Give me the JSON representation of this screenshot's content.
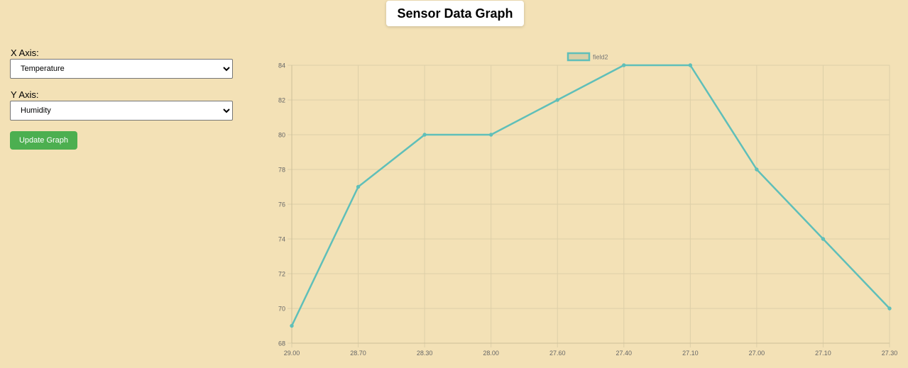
{
  "header": {
    "title": "Sensor Data Graph"
  },
  "controls": {
    "x_axis_label": "X Axis:",
    "x_axis_selected": "Temperature",
    "y_axis_label": "Y Axis:",
    "y_axis_selected": "Humidity",
    "update_button_label": "Update Graph"
  },
  "colors": {
    "line": "#5fbfb9",
    "legend_fill": "#d9cfa6",
    "grid": "#ddcfa8",
    "button": "#4caf50"
  },
  "chart_data": {
    "type": "line",
    "categories": [
      "29.00",
      "28.70",
      "28.30",
      "28.00",
      "27.60",
      "27.40",
      "27.10",
      "27.00",
      "27.10",
      "27.30"
    ],
    "series": [
      {
        "name": "field2",
        "values": [
          69,
          77,
          80,
          80,
          82,
          84,
          84,
          78,
          74,
          70
        ]
      }
    ],
    "ylim": [
      68,
      84
    ],
    "yticks": [
      68,
      70,
      72,
      74,
      76,
      78,
      80,
      82,
      84
    ],
    "grid": true,
    "legend": "top-center"
  }
}
